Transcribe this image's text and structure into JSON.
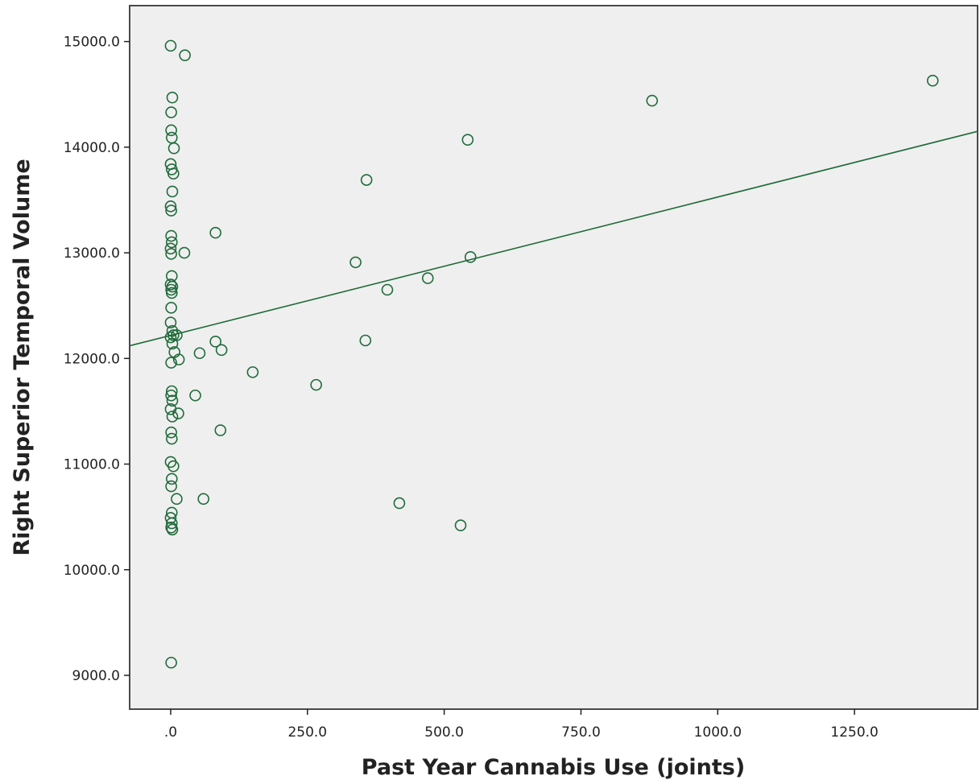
{
  "chart_data": {
    "type": "scatter",
    "title": "",
    "xlabel": "Past Year Cannabis Use (joints)",
    "ylabel": "Right Superior Temporal Volume",
    "xlim": [
      -75,
      1475
    ],
    "ylim": [
      8680,
      15340
    ],
    "x_ticks": [
      0,
      250,
      500,
      750,
      1000,
      1250
    ],
    "x_tick_labels": [
      ".0",
      "250.0",
      "500.0",
      "750.0",
      "1000.0",
      "1250.0"
    ],
    "y_ticks": [
      9000,
      10000,
      11000,
      12000,
      13000,
      14000,
      15000
    ],
    "y_tick_labels": [
      "9000.0",
      "10000.0",
      "11000.0",
      "12000.0",
      "13000.0",
      "14000.0",
      "15000.0"
    ],
    "grid": false,
    "marker": "open-circle",
    "color": "#1f6b3a",
    "fit_line": {
      "x": [
        -75,
        1475
      ],
      "y": [
        12120,
        14150
      ]
    },
    "points": [
      {
        "x": 0,
        "y": 14960
      },
      {
        "x": 26,
        "y": 14870
      },
      {
        "x": 3,
        "y": 14470
      },
      {
        "x": 1,
        "y": 14330
      },
      {
        "x": 1,
        "y": 14160
      },
      {
        "x": 2,
        "y": 14090
      },
      {
        "x": 6,
        "y": 13990
      },
      {
        "x": 0,
        "y": 13840
      },
      {
        "x": 2,
        "y": 13790
      },
      {
        "x": 5,
        "y": 13750
      },
      {
        "x": 3,
        "y": 13580
      },
      {
        "x": 0,
        "y": 13440
      },
      {
        "x": 1,
        "y": 13400
      },
      {
        "x": 1,
        "y": 13160
      },
      {
        "x": 2,
        "y": 13100
      },
      {
        "x": 0,
        "y": 13040
      },
      {
        "x": 1,
        "y": 12990
      },
      {
        "x": 25,
        "y": 13000
      },
      {
        "x": 2,
        "y": 12780
      },
      {
        "x": 0,
        "y": 12700
      },
      {
        "x": 3,
        "y": 12680
      },
      {
        "x": 1,
        "y": 12650
      },
      {
        "x": 2,
        "y": 12620
      },
      {
        "x": 1,
        "y": 12480
      },
      {
        "x": 0,
        "y": 12340
      },
      {
        "x": 3,
        "y": 12260
      },
      {
        "x": 5,
        "y": 12220
      },
      {
        "x": 11,
        "y": 12220
      },
      {
        "x": 0,
        "y": 12200
      },
      {
        "x": 3,
        "y": 12140
      },
      {
        "x": 7,
        "y": 12060
      },
      {
        "x": 15,
        "y": 11990
      },
      {
        "x": 1,
        "y": 11960
      },
      {
        "x": 2,
        "y": 11690
      },
      {
        "x": 1,
        "y": 11650
      },
      {
        "x": 3,
        "y": 11600
      },
      {
        "x": 0,
        "y": 11520
      },
      {
        "x": 14,
        "y": 11480
      },
      {
        "x": 3,
        "y": 11450
      },
      {
        "x": 1,
        "y": 11300
      },
      {
        "x": 2,
        "y": 11240
      },
      {
        "x": 0,
        "y": 11020
      },
      {
        "x": 5,
        "y": 10980
      },
      {
        "x": 2,
        "y": 10860
      },
      {
        "x": 1,
        "y": 10790
      },
      {
        "x": 11,
        "y": 10670
      },
      {
        "x": 2,
        "y": 10540
      },
      {
        "x": 0,
        "y": 10490
      },
      {
        "x": 2,
        "y": 10440
      },
      {
        "x": 1,
        "y": 10400
      },
      {
        "x": 3,
        "y": 10380
      },
      {
        "x": 1,
        "y": 9120
      },
      {
        "x": 53,
        "y": 12050
      },
      {
        "x": 45,
        "y": 11650
      },
      {
        "x": 60,
        "y": 10670
      },
      {
        "x": 82,
        "y": 13190
      },
      {
        "x": 82,
        "y": 12160
      },
      {
        "x": 93,
        "y": 12080
      },
      {
        "x": 91,
        "y": 11320
      },
      {
        "x": 150,
        "y": 11870
      },
      {
        "x": 266,
        "y": 11750
      },
      {
        "x": 338,
        "y": 12910
      },
      {
        "x": 356,
        "y": 12170
      },
      {
        "x": 358,
        "y": 13690
      },
      {
        "x": 396,
        "y": 12650
      },
      {
        "x": 418,
        "y": 10630
      },
      {
        "x": 470,
        "y": 12760
      },
      {
        "x": 530,
        "y": 10420
      },
      {
        "x": 543,
        "y": 14070
      },
      {
        "x": 548,
        "y": 12960
      },
      {
        "x": 880,
        "y": 14440
      },
      {
        "x": 1393,
        "y": 14630
      }
    ]
  }
}
